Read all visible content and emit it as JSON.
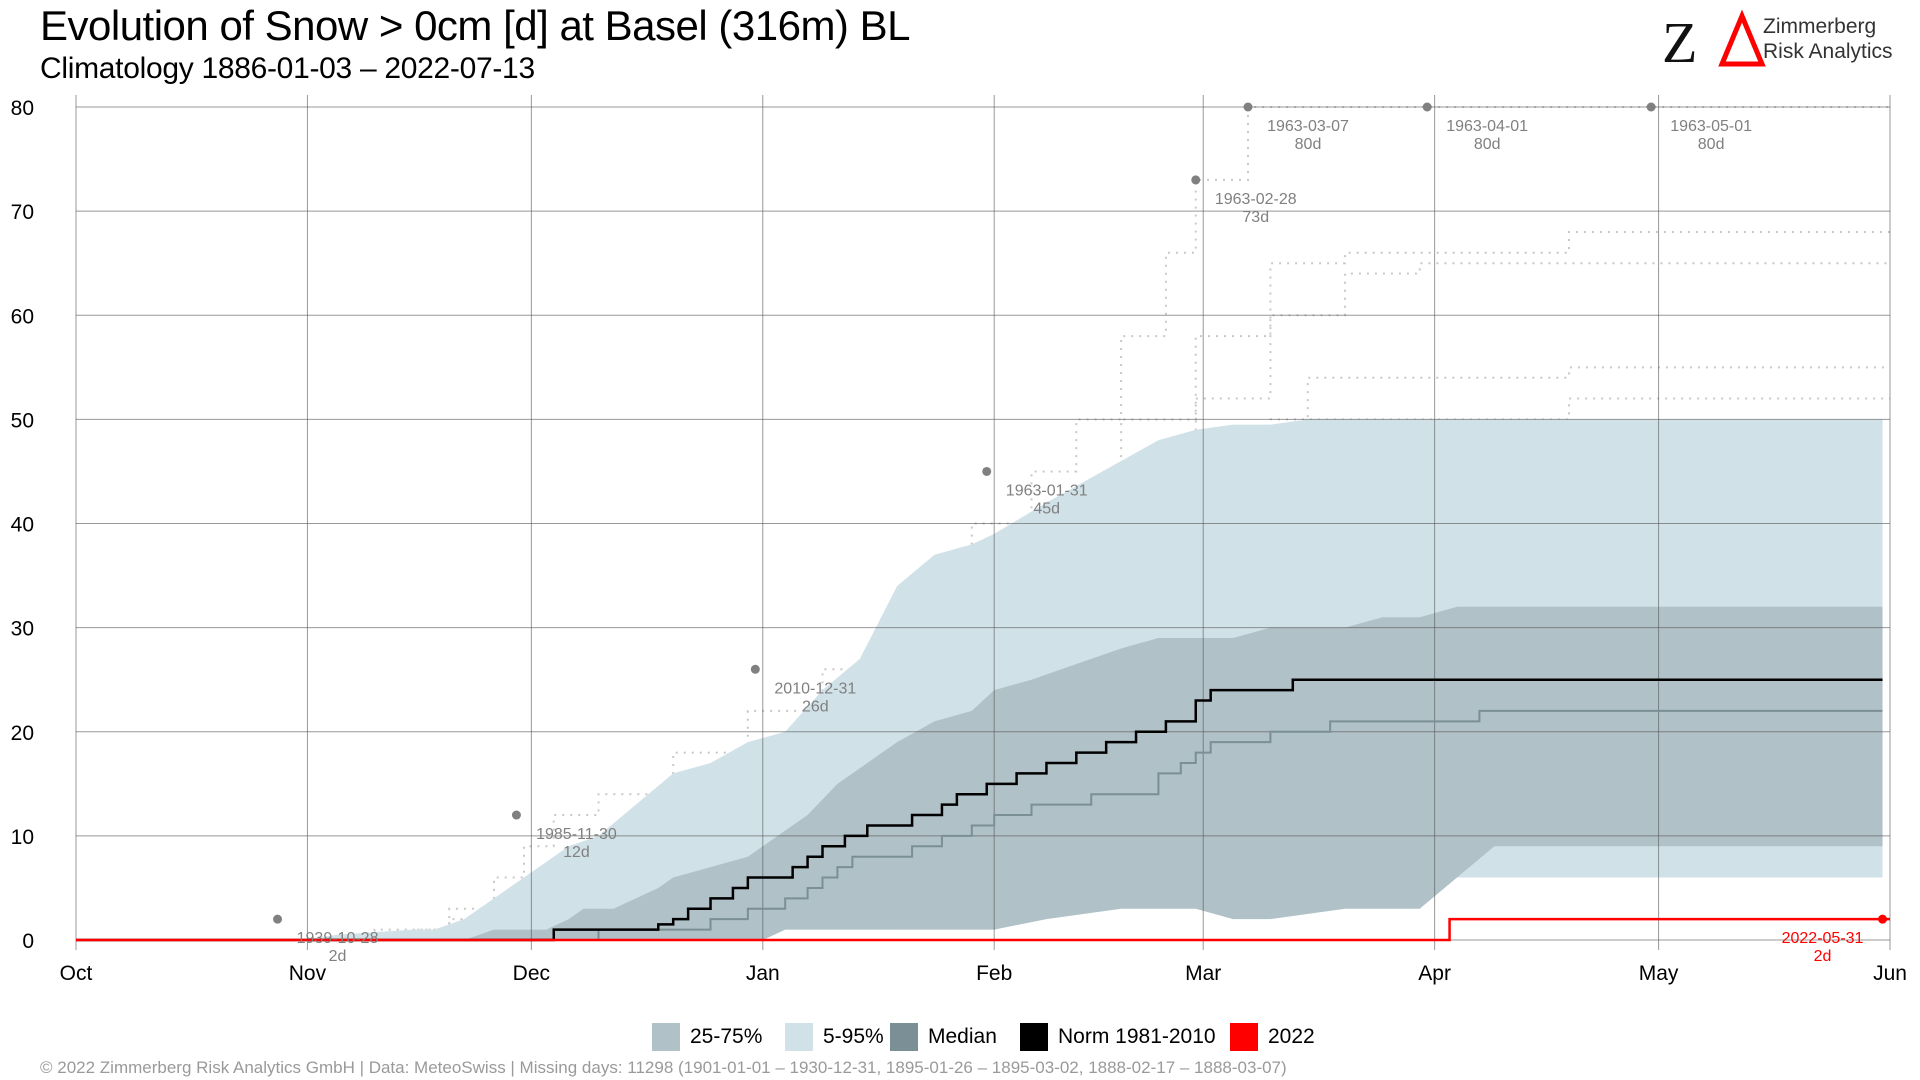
{
  "title": "Evolution of Snow > 0cm [d] at Basel (316m) BL",
  "subtitle": "Climatology 1886-01-03 – 2022-07-13",
  "logo": {
    "line1": "Zimmerberg",
    "line2": "Risk Analytics",
    "mark": "ZΔ"
  },
  "footer": "© 2022 Zimmerberg Risk Analytics GmbH | Data: MeteoSwiss | Missing days: 11298 (1901-01-01 – 1930-12-31, 1895-01-26 – 1895-03-02, 1888-02-17 – 1888-03-07)",
  "legend": [
    {
      "label": "25-75%",
      "color": "#b0c1c7"
    },
    {
      "label": "5-95%",
      "color": "#d0e2e8"
    },
    {
      "label": "Median",
      "color": "#7b8f96"
    },
    {
      "label": "Norm 1981-2010",
      "color": "#000000"
    },
    {
      "label": "2022",
      "color": "#ff0000"
    }
  ],
  "chart_data": {
    "type": "area",
    "xlabel": "",
    "ylabel": "",
    "xlim": [
      0,
      243
    ],
    "ylim": [
      0,
      80
    ],
    "grid": true,
    "legend_position": "bottom",
    "x_ticks": [
      {
        "day": 0,
        "label": "Oct"
      },
      {
        "day": 31,
        "label": "Nov"
      },
      {
        "day": 61,
        "label": "Dec"
      },
      {
        "day": 92,
        "label": "Jan"
      },
      {
        "day": 123,
        "label": "Feb"
      },
      {
        "day": 151,
        "label": "Mar"
      },
      {
        "day": 182,
        "label": "Apr"
      },
      {
        "day": 212,
        "label": "May"
      },
      {
        "day": 243,
        "label": "Jun"
      }
    ],
    "y_ticks": [
      0,
      10,
      20,
      30,
      40,
      50,
      60,
      70,
      80
    ],
    "series": [
      {
        "name": "5-95%",
        "color": "#d0e2e8",
        "lower": [
          [
            0,
            0
          ],
          [
            92,
            0
          ],
          [
            95,
            1
          ],
          [
            100,
            1
          ],
          [
            110,
            1
          ],
          [
            118,
            2
          ],
          [
            123,
            4
          ],
          [
            130,
            4
          ],
          [
            140,
            5
          ],
          [
            150,
            5
          ],
          [
            152,
            6
          ],
          [
            160,
            6
          ],
          [
            170,
            6
          ],
          [
            180,
            6
          ],
          [
            182,
            6
          ],
          [
            190,
            6
          ],
          [
            200,
            6
          ],
          [
            212,
            6
          ],
          [
            230,
            6
          ],
          [
            242,
            6
          ]
        ],
        "upper": [
          [
            0,
            0
          ],
          [
            30,
            0
          ],
          [
            35,
            0.5
          ],
          [
            45,
            1
          ],
          [
            48,
            1
          ],
          [
            52,
            2
          ],
          [
            56,
            4
          ],
          [
            60,
            6
          ],
          [
            62,
            7
          ],
          [
            66,
            9
          ],
          [
            70,
            10
          ],
          [
            75,
            13
          ],
          [
            80,
            16
          ],
          [
            85,
            17
          ],
          [
            90,
            19
          ],
          [
            95,
            20
          ],
          [
            100,
            24
          ],
          [
            105,
            27
          ],
          [
            110,
            34
          ],
          [
            115,
            37
          ],
          [
            120,
            38
          ],
          [
            123,
            39
          ],
          [
            130,
            42
          ],
          [
            135,
            44
          ],
          [
            140,
            46
          ],
          [
            145,
            48
          ],
          [
            150,
            49
          ],
          [
            155,
            49.5
          ],
          [
            160,
            49.5
          ],
          [
            165,
            50
          ],
          [
            200,
            50
          ],
          [
            242,
            50
          ]
        ]
      },
      {
        "name": "25-75%",
        "color": "#b0c1c7",
        "lower": [
          [
            0,
            0
          ],
          [
            92,
            0
          ],
          [
            95,
            1
          ],
          [
            100,
            1
          ],
          [
            110,
            1
          ],
          [
            120,
            1
          ],
          [
            123,
            1
          ],
          [
            130,
            2
          ],
          [
            140,
            3
          ],
          [
            150,
            3
          ],
          [
            155,
            2
          ],
          [
            160,
            2
          ],
          [
            170,
            3
          ],
          [
            180,
            3
          ],
          [
            190,
            9
          ],
          [
            200,
            9
          ],
          [
            242,
            9
          ]
        ],
        "upper": [
          [
            0,
            0
          ],
          [
            52,
            0
          ],
          [
            56,
            1
          ],
          [
            60,
            1
          ],
          [
            63,
            1
          ],
          [
            66,
            2
          ],
          [
            68,
            3
          ],
          [
            72,
            3
          ],
          [
            75,
            4
          ],
          [
            78,
            5
          ],
          [
            80,
            6
          ],
          [
            85,
            7
          ],
          [
            90,
            8
          ],
          [
            94,
            10
          ],
          [
            98,
            12
          ],
          [
            102,
            15
          ],
          [
            106,
            17
          ],
          [
            110,
            19
          ],
          [
            115,
            21
          ],
          [
            120,
            22
          ],
          [
            123,
            24
          ],
          [
            128,
            25
          ],
          [
            132,
            26
          ],
          [
            136,
            27
          ],
          [
            140,
            28
          ],
          [
            145,
            29
          ],
          [
            150,
            29
          ],
          [
            155,
            29
          ],
          [
            160,
            30
          ],
          [
            170,
            30
          ],
          [
            175,
            31
          ],
          [
            180,
            31
          ],
          [
            185,
            32
          ],
          [
            200,
            32
          ],
          [
            242,
            32
          ]
        ]
      },
      {
        "name": "Median",
        "color": "#7b8f96",
        "points": [
          [
            0,
            0
          ],
          [
            66,
            0
          ],
          [
            70,
            1
          ],
          [
            80,
            1
          ],
          [
            85,
            2
          ],
          [
            88,
            2
          ],
          [
            90,
            3
          ],
          [
            93,
            3
          ],
          [
            95,
            4
          ],
          [
            98,
            5
          ],
          [
            100,
            6
          ],
          [
            102,
            7
          ],
          [
            104,
            8
          ],
          [
            110,
            8
          ],
          [
            112,
            9
          ],
          [
            116,
            10
          ],
          [
            120,
            11
          ],
          [
            123,
            12
          ],
          [
            126,
            12
          ],
          [
            128,
            13
          ],
          [
            134,
            13
          ],
          [
            136,
            14
          ],
          [
            142,
            14
          ],
          [
            145,
            16
          ],
          [
            148,
            17
          ],
          [
            150,
            18
          ],
          [
            152,
            19
          ],
          [
            157,
            19
          ],
          [
            160,
            20
          ],
          [
            165,
            20
          ],
          [
            168,
            21
          ],
          [
            185,
            21
          ],
          [
            188,
            22
          ],
          [
            200,
            22
          ],
          [
            242,
            22
          ]
        ]
      },
      {
        "name": "Norm 1981-2010",
        "color": "#000000",
        "points": [
          [
            0,
            0
          ],
          [
            62,
            0
          ],
          [
            64,
            1
          ],
          [
            76,
            1
          ],
          [
            78,
            1.5
          ],
          [
            80,
            2
          ],
          [
            82,
            3
          ],
          [
            85,
            4
          ],
          [
            88,
            5
          ],
          [
            90,
            6
          ],
          [
            94,
            6
          ],
          [
            96,
            7
          ],
          [
            98,
            8
          ],
          [
            100,
            9
          ],
          [
            103,
            10
          ],
          [
            106,
            11
          ],
          [
            112,
            12
          ],
          [
            116,
            13
          ],
          [
            118,
            14
          ],
          [
            122,
            15
          ],
          [
            126,
            16
          ],
          [
            130,
            17
          ],
          [
            134,
            18
          ],
          [
            138,
            19
          ],
          [
            142,
            20
          ],
          [
            146,
            21
          ],
          [
            150,
            23
          ],
          [
            152,
            24
          ],
          [
            160,
            24
          ],
          [
            163,
            25
          ],
          [
            200,
            25
          ],
          [
            242,
            25
          ]
        ]
      },
      {
        "name": "2022",
        "color": "#ff0000",
        "points": [
          [
            0,
            0
          ],
          [
            182,
            0
          ],
          [
            184,
            2
          ],
          [
            243,
            2
          ]
        ]
      }
    ],
    "annotations": [
      {
        "day": 27,
        "value": 2,
        "date": "1939-10-28",
        "days": "2d"
      },
      {
        "day": 59,
        "value": 12,
        "date": "1985-11-30",
        "days": "12d"
      },
      {
        "day": 91,
        "value": 26,
        "date": "2010-12-31",
        "days": "26d"
      },
      {
        "day": 122,
        "value": 45,
        "date": "1963-01-31",
        "days": "45d"
      },
      {
        "day": 150,
        "value": 73,
        "date": "1963-02-28",
        "days": "73d"
      },
      {
        "day": 157,
        "value": 80,
        "date": "1963-03-07",
        "days": "80d"
      },
      {
        "day": 181,
        "value": 80,
        "date": "1963-04-01",
        "days": "80d"
      },
      {
        "day": 211,
        "value": 80,
        "date": "1963-05-01",
        "days": "80d"
      },
      {
        "day": 242,
        "value": 2,
        "date": "2022-05-31",
        "days": "2d",
        "highlight": true
      }
    ],
    "historical_tracks": [
      [
        [
          24,
          0
        ],
        [
          40,
          1
        ],
        [
          50,
          3
        ],
        [
          56,
          6
        ],
        [
          60,
          9
        ],
        [
          64,
          12
        ],
        [
          70,
          14
        ],
        [
          80,
          18
        ],
        [
          90,
          22
        ],
        [
          100,
          26
        ],
        [
          110,
          32
        ],
        [
          120,
          40
        ],
        [
          128,
          45
        ],
        [
          134,
          50
        ],
        [
          140,
          58
        ],
        [
          146,
          66
        ],
        [
          150,
          73
        ],
        [
          157,
          80
        ],
        [
          243,
          80
        ]
      ],
      [
        [
          30,
          0
        ],
        [
          45,
          1
        ],
        [
          55,
          3
        ],
        [
          60,
          5
        ],
        [
          70,
          9
        ],
        [
          80,
          12
        ],
        [
          90,
          18
        ],
        [
          100,
          22
        ],
        [
          110,
          28
        ],
        [
          120,
          34
        ],
        [
          130,
          42
        ],
        [
          140,
          50
        ],
        [
          150,
          58
        ],
        [
          160,
          65
        ],
        [
          170,
          66
        ],
        [
          190,
          66
        ],
        [
          200,
          68
        ],
        [
          243,
          68
        ]
      ],
      [
        [
          35,
          0
        ],
        [
          50,
          2
        ],
        [
          60,
          4
        ],
        [
          70,
          6
        ],
        [
          80,
          10
        ],
        [
          90,
          14
        ],
        [
          100,
          18
        ],
        [
          110,
          22
        ],
        [
          120,
          30
        ],
        [
          130,
          36
        ],
        [
          140,
          44
        ],
        [
          150,
          52
        ],
        [
          160,
          60
        ],
        [
          170,
          64
        ],
        [
          180,
          65
        ],
        [
          243,
          65
        ]
      ],
      [
        [
          40,
          0
        ],
        [
          55,
          1
        ],
        [
          65,
          3
        ],
        [
          75,
          6
        ],
        [
          85,
          8
        ],
        [
          95,
          12
        ],
        [
          105,
          16
        ],
        [
          115,
          20
        ],
        [
          125,
          26
        ],
        [
          135,
          32
        ],
        [
          145,
          40
        ],
        [
          155,
          48
        ],
        [
          165,
          54
        ],
        [
          200,
          55
        ],
        [
          243,
          55
        ]
      ],
      [
        [
          40,
          0
        ],
        [
          60,
          2
        ],
        [
          70,
          4
        ],
        [
          80,
          6
        ],
        [
          90,
          9
        ],
        [
          100,
          12
        ],
        [
          110,
          16
        ],
        [
          120,
          22
        ],
        [
          130,
          28
        ],
        [
          140,
          36
        ],
        [
          150,
          44
        ],
        [
          160,
          50
        ],
        [
          200,
          52
        ],
        [
          243,
          52
        ]
      ]
    ]
  }
}
